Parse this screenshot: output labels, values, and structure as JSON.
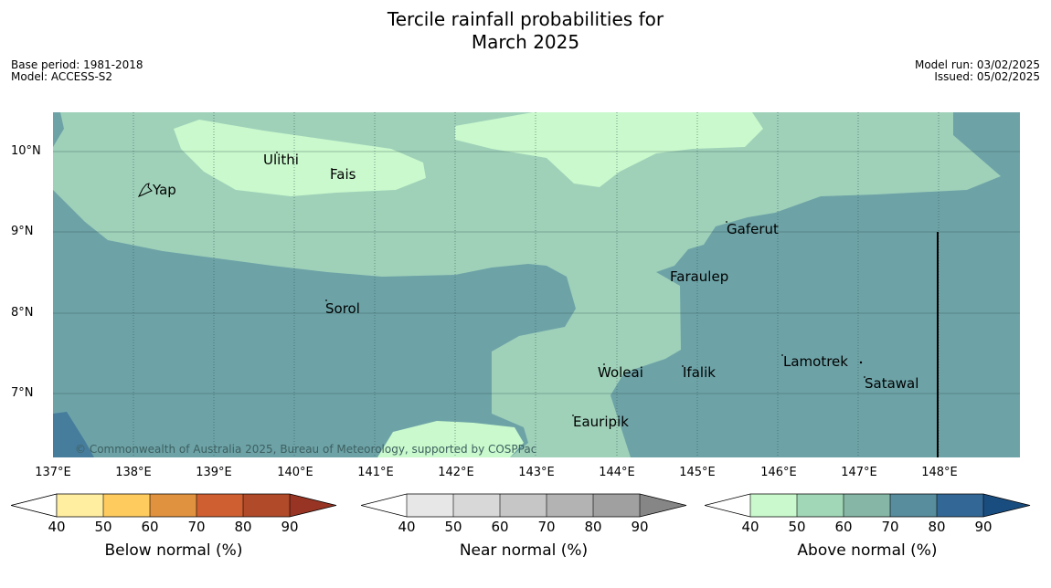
{
  "title": {
    "line1": "Tercile rainfall probabilities for",
    "line2": "March 2025"
  },
  "meta": {
    "base_period": "Base period: 1981-2018",
    "model": "Model: ACCESS-S2",
    "model_run": "Model run: 03/02/2025",
    "issued": "Issued: 05/02/2025"
  },
  "map": {
    "lat_labels": [
      "10°N",
      "9°N",
      "8°N",
      "7°N"
    ],
    "lon_labels": [
      "137°E",
      "138°E",
      "139°E",
      "140°E",
      "141°E",
      "142°E",
      "143°E",
      "144°E",
      "145°E",
      "146°E",
      "147°E",
      "148°E"
    ],
    "places": [
      "Ulithi",
      "Fais",
      "Yap",
      "Gaferut",
      "Faraulep",
      "Sorol",
      "Woleai",
      "Ifalik",
      "Lamotrek",
      "Satawal",
      "Eauripik"
    ],
    "copyright": "© Commonwealth of Australia 2025, Bureau of Meteorology, supported by COSPPac",
    "colors": {
      "above_50_60": "#9fd1b9",
      "above_70_80": "#6da3a7",
      "above_40_50": "#c9f9cc",
      "above_80_90": "#467d9c"
    }
  },
  "colorbars": [
    {
      "title": "Below normal (%)",
      "ticks": [
        "40",
        "50",
        "60",
        "70",
        "80",
        "90"
      ],
      "colors": [
        "#ffffff",
        "#ffeda0",
        "#fecb5f",
        "#e1923f",
        "#cf5f30",
        "#b04a28",
        "#973423"
      ]
    },
    {
      "title": "Near normal (%)",
      "ticks": [
        "40",
        "50",
        "60",
        "70",
        "80",
        "90"
      ],
      "colors": [
        "#ffffff",
        "#e7e7e7",
        "#d8d8d8",
        "#c6c6c6",
        "#b3b3b3",
        "#a0a0a0",
        "#868686"
      ]
    },
    {
      "title": "Above normal (%)",
      "ticks": [
        "40",
        "50",
        "60",
        "70",
        "80",
        "90"
      ],
      "colors": [
        "#ffffff",
        "#c9f9cc",
        "#a1d6b6",
        "#86b7a6",
        "#578d9c",
        "#336896",
        "#1a4d7f"
      ]
    }
  ]
}
